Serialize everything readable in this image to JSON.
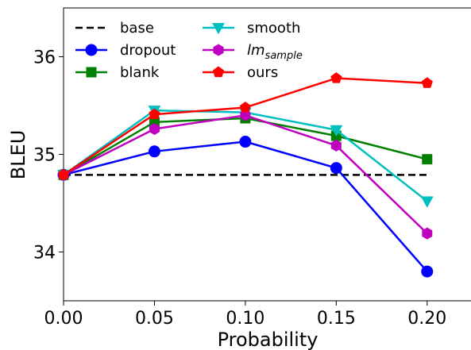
{
  "chart_data": {
    "type": "line",
    "title": "",
    "xlabel": "Probability",
    "ylabel": "BLEU",
    "x": [
      0.0,
      0.05,
      0.1,
      0.15,
      0.2
    ],
    "xlim": [
      0.0,
      0.225
    ],
    "ylim": [
      33.5,
      36.5
    ],
    "xticks": [
      "0.00",
      "0.05",
      "0.10",
      "0.15",
      "0.20"
    ],
    "yticks": [
      "34",
      "35",
      "36"
    ],
    "grid": false,
    "legend_position": "top-left",
    "series": [
      {
        "name": "base",
        "style": "dashed",
        "marker": "none",
        "color": "#000000",
        "x": [
          0.0,
          0.2
        ],
        "values": [
          34.79,
          34.79
        ]
      },
      {
        "name": "dropout",
        "style": "solid",
        "marker": "circle",
        "color": "#0000ff",
        "values": [
          34.79,
          35.03,
          35.13,
          34.86,
          33.8
        ]
      },
      {
        "name": "blank",
        "style": "solid",
        "marker": "square",
        "color": "#008000",
        "values": [
          34.79,
          35.33,
          35.37,
          35.19,
          34.95
        ]
      },
      {
        "name": "smooth",
        "style": "solid",
        "marker": "triangle-down",
        "color": "#00bfbf",
        "values": [
          34.79,
          35.45,
          35.43,
          35.25,
          34.52
        ]
      },
      {
        "name": "lm",
        "name_subscript": "sample",
        "style": "solid",
        "marker": "hexagon",
        "color": "#bf00bf",
        "values": [
          34.79,
          35.26,
          35.4,
          35.09,
          34.19
        ]
      },
      {
        "name": "ours",
        "style": "solid",
        "marker": "pentagon",
        "color": "#ff0000",
        "values": [
          34.79,
          35.41,
          35.48,
          35.78,
          35.73
        ]
      }
    ]
  }
}
